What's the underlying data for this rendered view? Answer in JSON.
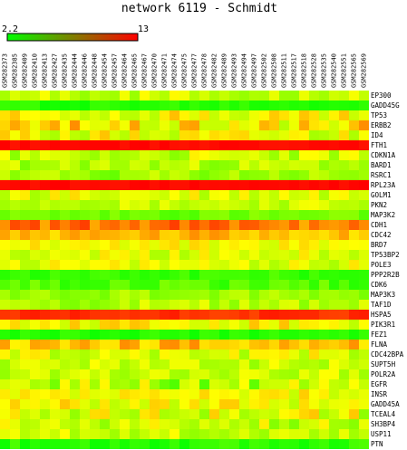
{
  "chart_data": {
    "type": "heatmap",
    "title": "network 6119 - Schmidt",
    "scale": {
      "min_label": "2.2",
      "max_label": "13",
      "min": 2.2,
      "max": 13,
      "min_color": "#00ff00",
      "max_color": "#ff0000"
    },
    "columns": [
      "GSM282373",
      "GSM282385",
      "GSM282409",
      "GSM282410",
      "GSM282413",
      "GSM282427",
      "GSM282435",
      "GSM282444",
      "GSM282446",
      "GSM282448",
      "GSM282454",
      "GSM282457",
      "GSM282464",
      "GSM282465",
      "GSM282467",
      "GSM282470",
      "GSM282471",
      "GSM282474",
      "GSM282475",
      "GSM282477",
      "GSM282478",
      "GSM282482",
      "GSM282489",
      "GSM282493",
      "GSM282494",
      "GSM282497",
      "GSM282502",
      "GSM282508",
      "GSM282511",
      "GSM282517",
      "GSM282518",
      "GSM282528",
      "GSM282535",
      "GSM282540",
      "GSM282551",
      "GSM282565",
      "GSM282569"
    ],
    "rows": [
      {
        "label": "EP300",
        "base": 6.5,
        "noise": 1.2
      },
      {
        "label": "GADD45G",
        "base": 3.0,
        "noise": 0.6
      },
      {
        "label": "TP53",
        "base": 7.5,
        "noise": 1.6
      },
      {
        "label": "ERBB2",
        "base": 8.0,
        "noise": 2.0
      },
      {
        "label": "ID4",
        "base": 7.5,
        "noise": 1.8
      },
      {
        "label": "FTH1",
        "base": 12.8,
        "noise": 0.2
      },
      {
        "label": "CDKN1A",
        "base": 6.5,
        "noise": 1.5
      },
      {
        "label": "BARD1",
        "base": 6.0,
        "noise": 1.2
      },
      {
        "label": "RSRC1",
        "base": 5.5,
        "noise": 1.2
      },
      {
        "label": "RPL23A",
        "base": 12.8,
        "noise": 0.2
      },
      {
        "label": "GOLM1",
        "base": 7.0,
        "noise": 1.5
      },
      {
        "label": "PKN2",
        "base": 6.5,
        "noise": 1.0
      },
      {
        "label": "MAP3K2",
        "base": 4.5,
        "noise": 0.8
      },
      {
        "label": "CDH1",
        "base": 10.5,
        "noise": 1.2
      },
      {
        "label": "CDC42",
        "base": 9.0,
        "noise": 1.0
      },
      {
        "label": "BRD7",
        "base": 7.5,
        "noise": 1.0
      },
      {
        "label": "TP53BP2",
        "base": 7.0,
        "noise": 1.2
      },
      {
        "label": "POLE3",
        "base": 7.0,
        "noise": 1.2
      },
      {
        "label": "PPP2R2B",
        "base": 3.5,
        "noise": 0.7
      },
      {
        "label": "CDK6",
        "base": 4.0,
        "noise": 1.0
      },
      {
        "label": "MAP3K3",
        "base": 5.5,
        "noise": 1.0
      },
      {
        "label": "TAF1D",
        "base": 6.0,
        "noise": 1.2
      },
      {
        "label": "HSPA5",
        "base": 12.0,
        "noise": 0.5
      },
      {
        "label": "PIK3R1",
        "base": 7.5,
        "noise": 1.4
      },
      {
        "label": "FEZ1",
        "base": 3.0,
        "noise": 0.5
      },
      {
        "label": "FLNA",
        "base": 9.0,
        "noise": 1.2
      },
      {
        "label": "CDC42BPA",
        "base": 7.0,
        "noise": 1.4
      },
      {
        "label": "SUPT5H",
        "base": 6.5,
        "noise": 1.2
      },
      {
        "label": "POLR2A",
        "base": 6.5,
        "noise": 1.2
      },
      {
        "label": "EGFR",
        "base": 6.0,
        "noise": 2.2
      },
      {
        "label": "INSR",
        "base": 7.5,
        "noise": 1.2
      },
      {
        "label": "GADD45A",
        "base": 7.5,
        "noise": 1.4
      },
      {
        "label": "TCEAL4",
        "base": 7.0,
        "noise": 1.8
      },
      {
        "label": "SH3BP4",
        "base": 6.5,
        "noise": 1.6
      },
      {
        "label": "USP11",
        "base": 6.5,
        "noise": 1.2
      },
      {
        "label": "PTN",
        "base": 3.2,
        "noise": 0.8
      }
    ]
  }
}
